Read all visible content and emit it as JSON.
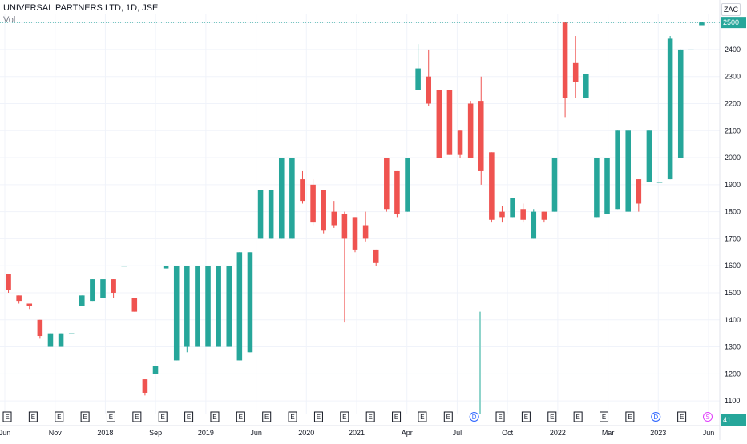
{
  "header": {
    "title": "UNIVERSAL PARTNERS LTD, 1D, JSE",
    "volume_label": "Vol",
    "currency_button": "ZAC"
  },
  "colors": {
    "up": "#26a69a",
    "down": "#ef5350",
    "grid": "#f0f3fa",
    "axis_text": "#131722",
    "event_border": "#131722",
    "dividend": "#2962ff",
    "split": "#e040fb"
  },
  "chart_data": {
    "type": "candlestick",
    "title": "UNIVERSAL PARTNERS LTD, 1D, JSE",
    "ylim": [
      1050,
      2530
    ],
    "y_ticks": [
      1100,
      1200,
      1300,
      1400,
      1500,
      1600,
      1700,
      1800,
      1900,
      2000,
      2100,
      2200,
      2300,
      2400,
      2500
    ],
    "x_ticks": [
      "Jun",
      "Nov",
      "2018",
      "Sep",
      "2019",
      "Jun",
      "2020",
      "2021",
      "Apr",
      "Jul",
      "Oct",
      "2022",
      "Mar",
      "2023",
      "Jun"
    ],
    "last_price": 2500,
    "last_volume": 41,
    "candles": [
      {
        "o": 1570,
        "h": 1570,
        "l": 1500,
        "c": 1510
      },
      {
        "o": 1490,
        "h": 1490,
        "l": 1460,
        "c": 1470
      },
      {
        "o": 1460,
        "h": 1460,
        "l": 1440,
        "c": 1450
      },
      {
        "o": 1400,
        "h": 1400,
        "l": 1330,
        "c": 1340
      },
      {
        "o": 1300,
        "h": 1350,
        "l": 1300,
        "c": 1350
      },
      {
        "o": 1300,
        "h": 1350,
        "l": 1300,
        "c": 1350
      },
      {
        "o": 1350,
        "h": 1350,
        "l": 1350,
        "c": 1350
      },
      {
        "o": 1450,
        "h": 1490,
        "l": 1450,
        "c": 1490
      },
      {
        "o": 1470,
        "h": 1550,
        "l": 1470,
        "c": 1550
      },
      {
        "o": 1480,
        "h": 1550,
        "l": 1480,
        "c": 1550
      },
      {
        "o": 1550,
        "h": 1550,
        "l": 1480,
        "c": 1500
      },
      {
        "o": 1600,
        "h": 1600,
        "l": 1600,
        "c": 1600
      },
      {
        "o": 1480,
        "h": 1480,
        "l": 1430,
        "c": 1430
      },
      {
        "o": 1180,
        "h": 1180,
        "l": 1120,
        "c": 1130
      },
      {
        "o": 1200,
        "h": 1230,
        "l": 1200,
        "c": 1230
      },
      {
        "o": 1590,
        "h": 1600,
        "l": 1590,
        "c": 1600
      },
      {
        "o": 1250,
        "h": 1600,
        "l": 1250,
        "c": 1600
      },
      {
        "o": 1300,
        "h": 1600,
        "l": 1280,
        "c": 1600
      },
      {
        "o": 1300,
        "h": 1600,
        "l": 1300,
        "c": 1600
      },
      {
        "o": 1300,
        "h": 1600,
        "l": 1300,
        "c": 1600
      },
      {
        "o": 1300,
        "h": 1600,
        "l": 1300,
        "c": 1600
      },
      {
        "o": 1300,
        "h": 1600,
        "l": 1300,
        "c": 1600
      },
      {
        "o": 1250,
        "h": 1650,
        "l": 1250,
        "c": 1650
      },
      {
        "o": 1280,
        "h": 1650,
        "l": 1280,
        "c": 1650
      },
      {
        "o": 1700,
        "h": 1880,
        "l": 1700,
        "c": 1880
      },
      {
        "o": 1700,
        "h": 1880,
        "l": 1700,
        "c": 1880
      },
      {
        "o": 1700,
        "h": 2000,
        "l": 1700,
        "c": 2000
      },
      {
        "o": 1700,
        "h": 2000,
        "l": 1700,
        "c": 2000
      },
      {
        "o": 1920,
        "h": 1950,
        "l": 1830,
        "c": 1840
      },
      {
        "o": 1900,
        "h": 1920,
        "l": 1750,
        "c": 1760
      },
      {
        "o": 1880,
        "h": 1880,
        "l": 1720,
        "c": 1730
      },
      {
        "o": 1800,
        "h": 1840,
        "l": 1740,
        "c": 1750
      },
      {
        "o": 1790,
        "h": 1800,
        "l": 1390,
        "c": 1700
      },
      {
        "o": 1780,
        "h": 1780,
        "l": 1650,
        "c": 1660
      },
      {
        "o": 1750,
        "h": 1800,
        "l": 1690,
        "c": 1700
      },
      {
        "o": 1660,
        "h": 1660,
        "l": 1600,
        "c": 1610
      },
      {
        "o": 2000,
        "h": 2000,
        "l": 1800,
        "c": 1810
      },
      {
        "o": 1950,
        "h": 1950,
        "l": 1780,
        "c": 1790
      },
      {
        "o": 1800,
        "h": 2000,
        "l": 1800,
        "c": 2000
      },
      {
        "o": 2250,
        "h": 2420,
        "l": 2250,
        "c": 2330
      },
      {
        "o": 2300,
        "h": 2400,
        "l": 2190,
        "c": 2200
      },
      {
        "o": 2250,
        "h": 2250,
        "l": 2000,
        "c": 2000
      },
      {
        "o": 2250,
        "h": 2250,
        "l": 2010,
        "c": 2010
      },
      {
        "o": 2100,
        "h": 2100,
        "l": 2000,
        "c": 2010
      },
      {
        "o": 2200,
        "h": 2210,
        "l": 2000,
        "c": 2000
      },
      {
        "o": 2210,
        "h": 2300,
        "l": 1900,
        "c": 1950
      },
      {
        "o": 2020,
        "h": 2020,
        "l": 1760,
        "c": 1770
      },
      {
        "o": 1800,
        "h": 1820,
        "l": 1760,
        "c": 1780
      },
      {
        "o": 1780,
        "h": 1850,
        "l": 1780,
        "c": 1850
      },
      {
        "o": 1810,
        "h": 1830,
        "l": 1760,
        "c": 1770
      },
      {
        "o": 1700,
        "h": 1810,
        "l": 1700,
        "c": 1800
      },
      {
        "o": 1800,
        "h": 1800,
        "l": 1760,
        "c": 1770
      },
      {
        "o": 1800,
        "h": 2000,
        "l": 1800,
        "c": 2000
      },
      {
        "o": 2500,
        "h": 2500,
        "l": 2150,
        "c": 2220
      },
      {
        "o": 2350,
        "h": 2450,
        "l": 2220,
        "c": 2280
      },
      {
        "o": 2220,
        "h": 2310,
        "l": 2220,
        "c": 2310
      },
      {
        "o": 1780,
        "h": 2000,
        "l": 1780,
        "c": 2000
      },
      {
        "o": 1790,
        "h": 2000,
        "l": 1790,
        "c": 2000
      },
      {
        "o": 1810,
        "h": 2100,
        "l": 1810,
        "c": 2100
      },
      {
        "o": 1800,
        "h": 2100,
        "l": 1800,
        "c": 2100
      },
      {
        "o": 1920,
        "h": 1920,
        "l": 1800,
        "c": 1830
      },
      {
        "o": 1910,
        "h": 2100,
        "l": 1910,
        "c": 2100
      },
      {
        "o": 1910,
        "h": 1910,
        "l": 1910,
        "c": 1910
      },
      {
        "o": 1920,
        "h": 2450,
        "l": 1920,
        "c": 2440
      },
      {
        "o": 2000,
        "h": 2400,
        "l": 2000,
        "c": 2400
      },
      {
        "o": 2400,
        "h": 2400,
        "l": 2400,
        "c": 2400
      },
      {
        "o": 2490,
        "h": 2500,
        "l": 2490,
        "c": 2500
      }
    ],
    "volume_spikes": [
      {
        "label": "Sep 2021",
        "value": 1430
      }
    ],
    "events": [
      "E",
      "E",
      "E",
      "E",
      "E",
      "E",
      "E",
      "E",
      "E",
      "E",
      "E",
      "E",
      "E",
      "E",
      "E",
      "E",
      "E",
      "E",
      "D",
      "E",
      "E",
      "E",
      "E",
      "E",
      "E",
      "D",
      "E",
      "S"
    ]
  }
}
